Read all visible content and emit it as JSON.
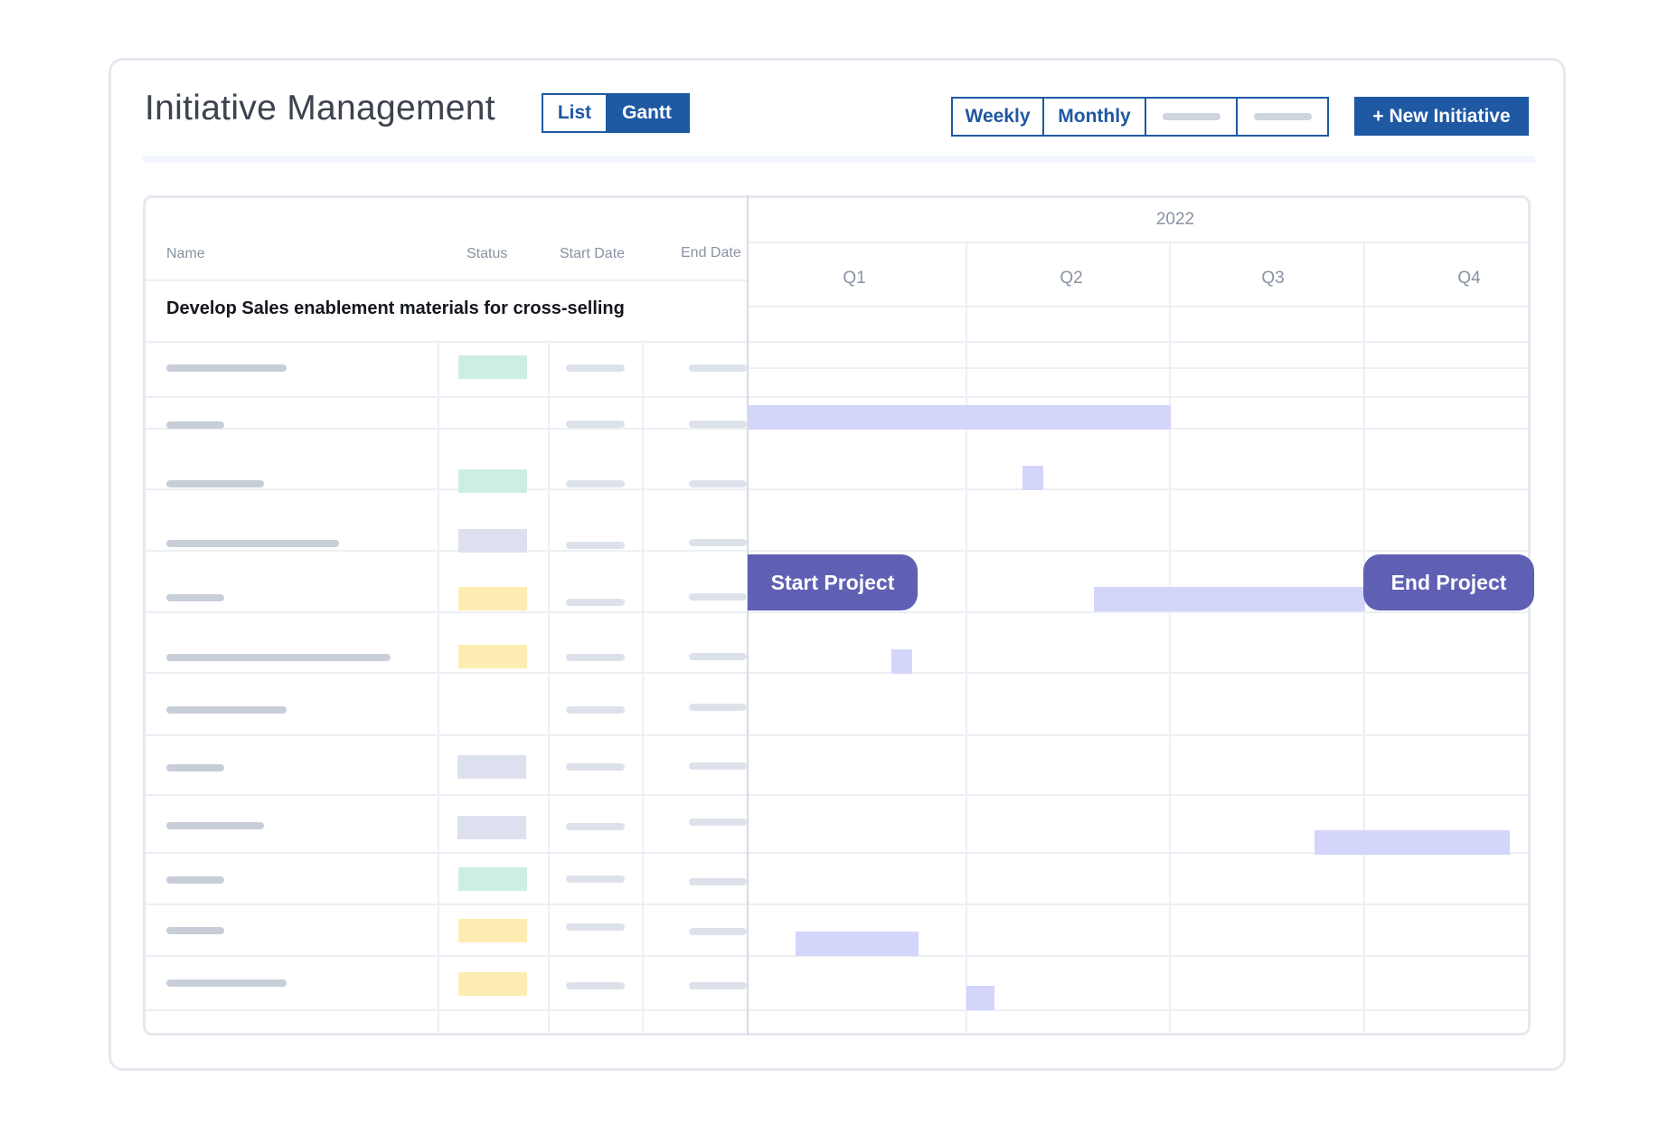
{
  "header": {
    "title": "Initiative Management",
    "view_toggle": {
      "list": "List",
      "gantt": "Gantt",
      "active": "Gantt"
    },
    "period_tabs": [
      "Weekly",
      "Monthly"
    ],
    "new_button": "+ New Initiative"
  },
  "table": {
    "columns": {
      "name": "Name",
      "status": "Status",
      "start": "Start Date",
      "end": "End Date"
    },
    "group_title": "Develop Sales enablement materials for cross-selling",
    "status_colors": {
      "green": "#cdeee2",
      "gray": "#dde1ef",
      "yellow": "#fdedb3"
    },
    "rows": [
      {
        "status": "green"
      },
      {
        "status": "none"
      },
      {
        "status": "green"
      },
      {
        "status": "gray"
      },
      {
        "status": "yellow"
      },
      {
        "status": "yellow"
      },
      {
        "status": "none"
      },
      {
        "status": "gray"
      },
      {
        "status": "gray"
      },
      {
        "status": "green"
      },
      {
        "status": "yellow"
      },
      {
        "status": "yellow"
      }
    ]
  },
  "gantt": {
    "year": "2022",
    "quarters": [
      "Q1",
      "Q2",
      "Q3",
      "Q4"
    ],
    "milestones": {
      "start": "Start Project",
      "end": "End Project"
    },
    "colors": {
      "bar": "#d4d5fb",
      "milestone": "#5f60b4",
      "accent": "#1f58a3"
    }
  }
}
